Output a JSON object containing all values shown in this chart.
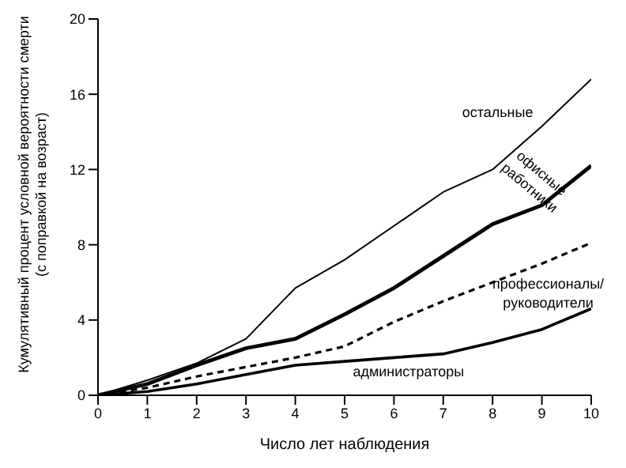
{
  "chart_data": {
    "type": "line",
    "xlabel": "Число лет наблюдения",
    "ylabel": "Кумулятивный процент условной вероятности смерти (с поправкой на возраст)",
    "x": [
      0,
      1,
      2,
      3,
      4,
      5,
      6,
      7,
      8,
      9,
      10
    ],
    "xlim": [
      0,
      10
    ],
    "xticks": [
      0,
      1,
      2,
      3,
      4,
      5,
      6,
      7,
      8,
      9,
      10
    ],
    "ylim": [
      0,
      20
    ],
    "yticks": [
      0,
      4,
      8,
      12,
      16,
      20
    ],
    "grid": false,
    "legend": false,
    "marker": "none",
    "series": [
      {
        "name": "остальные",
        "color": "#000000",
        "line_style": "solid",
        "values": [
          0,
          0.8,
          1.7,
          3,
          5.7,
          7.2,
          9,
          10.8,
          12,
          14.3,
          16.8
        ]
      },
      {
        "name": "офисные работники",
        "color": "#000000",
        "line_style": "solid",
        "values": [
          0,
          0.6,
          1.6,
          2.5,
          3,
          4.3,
          5.7,
          7.4,
          9.1,
          10.1,
          12.2
        ]
      },
      {
        "name": "профессионалы/ руководители",
        "color": "#000000",
        "line_style": "dashed",
        "values": [
          0,
          0.4,
          1,
          1.5,
          2,
          2.6,
          3.9,
          5,
          6,
          7,
          8.1
        ]
      },
      {
        "name": "администраторы",
        "color": "#000000",
        "line_style": "solid",
        "values": [
          0,
          0.2,
          0.6,
          1.1,
          1.6,
          1.8,
          2,
          2.2,
          2.8,
          3.5,
          4.6
        ]
      }
    ]
  }
}
